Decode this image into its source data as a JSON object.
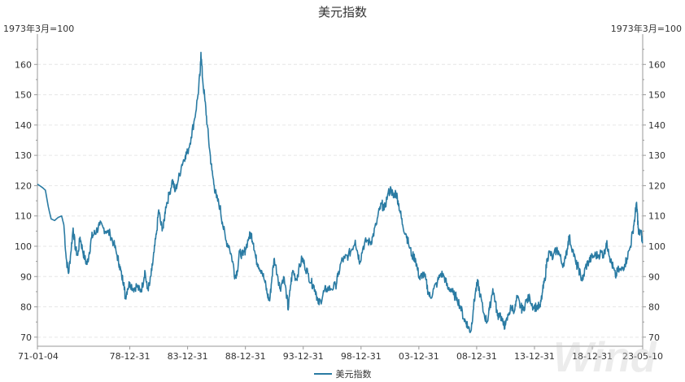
{
  "chart_data": {
    "type": "line",
    "title": "美元指数",
    "y_unit_left": "1973年3月=100",
    "y_unit_right": "1973年3月=100",
    "x_tick_labels": [
      "71-01-04",
      "78-12-31",
      "83-12-31",
      "88-12-31",
      "93-12-31",
      "98-12-31",
      "03-12-31",
      "08-12-31",
      "13-12-31",
      "18-12-31",
      "23-05-10"
    ],
    "x_tick_years": [
      1971.01,
      1979.0,
      1984.0,
      1989.0,
      1994.0,
      1999.0,
      2004.0,
      2009.0,
      2014.0,
      2019.0,
      2023.36
    ],
    "xlim": [
      1971.01,
      2023.36
    ],
    "ylim": [
      67,
      170
    ],
    "y_ticks": [
      70,
      80,
      90,
      100,
      110,
      120,
      130,
      140,
      150,
      160
    ],
    "grid": true,
    "legend": "bottom-center",
    "series": [
      {
        "name": "美元指数",
        "color": "#2a7ba3",
        "points": [
          [
            1971.01,
            120.5
          ],
          [
            1971.4,
            119.5
          ],
          [
            1971.7,
            118.5
          ],
          [
            1971.95,
            113
          ],
          [
            1972.2,
            109
          ],
          [
            1972.5,
            108.5
          ],
          [
            1972.8,
            109.5
          ],
          [
            1973.1,
            110
          ],
          [
            1973.3,
            107
          ],
          [
            1973.5,
            96
          ],
          [
            1973.7,
            91
          ],
          [
            1973.9,
            98
          ],
          [
            1974.1,
            106
          ],
          [
            1974.3,
            99
          ],
          [
            1974.5,
            97
          ],
          [
            1974.7,
            103
          ],
          [
            1974.9,
            99
          ],
          [
            1975.1,
            96
          ],
          [
            1975.3,
            94
          ],
          [
            1975.5,
            98
          ],
          [
            1975.7,
            103
          ],
          [
            1975.9,
            104
          ],
          [
            1976.1,
            105
          ],
          [
            1976.4,
            107
          ],
          [
            1976.7,
            106
          ],
          [
            1977.0,
            105
          ],
          [
            1977.3,
            104
          ],
          [
            1977.6,
            101
          ],
          [
            1977.9,
            97
          ],
          [
            1978.1,
            94
          ],
          [
            1978.3,
            90
          ],
          [
            1978.5,
            88
          ],
          [
            1978.6,
            83
          ],
          [
            1978.8,
            86
          ],
          [
            1979.0,
            88
          ],
          [
            1979.3,
            86
          ],
          [
            1979.6,
            87
          ],
          [
            1979.9,
            85
          ],
          [
            1980.1,
            87
          ],
          [
            1980.3,
            92
          ],
          [
            1980.5,
            86
          ],
          [
            1980.7,
            87
          ],
          [
            1980.9,
            92
          ],
          [
            1981.1,
            98
          ],
          [
            1981.3,
            104
          ],
          [
            1981.5,
            112
          ],
          [
            1981.7,
            107
          ],
          [
            1981.9,
            106
          ],
          [
            1982.1,
            113
          ],
          [
            1982.4,
            117
          ],
          [
            1982.7,
            122
          ],
          [
            1982.9,
            118
          ],
          [
            1983.2,
            122
          ],
          [
            1983.5,
            127
          ],
          [
            1983.8,
            130
          ],
          [
            1984.0,
            131
          ],
          [
            1984.3,
            136
          ],
          [
            1984.6,
            142
          ],
          [
            1984.9,
            150
          ],
          [
            1985.1,
            158
          ],
          [
            1985.15,
            164
          ],
          [
            1985.3,
            155
          ],
          [
            1985.5,
            148
          ],
          [
            1985.7,
            140
          ],
          [
            1985.9,
            132
          ],
          [
            1986.1,
            125
          ],
          [
            1986.3,
            120
          ],
          [
            1986.5,
            116
          ],
          [
            1986.8,
            113
          ],
          [
            1987.0,
            108
          ],
          [
            1987.3,
            102
          ],
          [
            1987.6,
            100
          ],
          [
            1987.9,
            95
          ],
          [
            1988.1,
            90
          ],
          [
            1988.3,
            92
          ],
          [
            1988.5,
            98
          ],
          [
            1988.8,
            97
          ],
          [
            1989.0,
            99
          ],
          [
            1989.3,
            103
          ],
          [
            1989.5,
            104
          ],
          [
            1989.7,
            101
          ],
          [
            1989.9,
            96
          ],
          [
            1990.1,
            94
          ],
          [
            1990.4,
            92
          ],
          [
            1990.7,
            88
          ],
          [
            1990.9,
            84
          ],
          [
            1991.1,
            82
          ],
          [
            1991.3,
            90
          ],
          [
            1991.5,
            96
          ],
          [
            1991.8,
            90
          ],
          [
            1992.0,
            86
          ],
          [
            1992.3,
            90
          ],
          [
            1992.6,
            83
          ],
          [
            1992.7,
            79
          ],
          [
            1992.9,
            87
          ],
          [
            1993.1,
            92
          ],
          [
            1993.4,
            89
          ],
          [
            1993.6,
            92
          ],
          [
            1993.9,
            96
          ],
          [
            1994.1,
            94
          ],
          [
            1994.4,
            91
          ],
          [
            1994.7,
            88
          ],
          [
            1994.9,
            87
          ],
          [
            1995.1,
            85
          ],
          [
            1995.3,
            81
          ],
          [
            1995.5,
            82
          ],
          [
            1995.8,
            85
          ],
          [
            1996.0,
            86
          ],
          [
            1996.4,
            86
          ],
          [
            1996.8,
            87
          ],
          [
            1997.0,
            90
          ],
          [
            1997.3,
            95
          ],
          [
            1997.6,
            96
          ],
          [
            1997.9,
            97
          ],
          [
            1998.2,
            99
          ],
          [
            1998.5,
            102
          ],
          [
            1998.7,
            98
          ],
          [
            1998.9,
            95
          ],
          [
            1999.2,
            100
          ],
          [
            1999.5,
            102
          ],
          [
            1999.8,
            101
          ],
          [
            2000.0,
            103
          ],
          [
            2000.3,
            107
          ],
          [
            2000.6,
            112
          ],
          [
            2000.8,
            114
          ],
          [
            2001.0,
            112
          ],
          [
            2001.3,
            117
          ],
          [
            2001.6,
            119
          ],
          [
            2001.8,
            116
          ],
          [
            2002.0,
            118
          ],
          [
            2002.2,
            115
          ],
          [
            2002.4,
            111
          ],
          [
            2002.6,
            107
          ],
          [
            2002.9,
            104
          ],
          [
            2003.1,
            101
          ],
          [
            2003.4,
            97
          ],
          [
            2003.7,
            96
          ],
          [
            2003.9,
            92
          ],
          [
            2004.1,
            89
          ],
          [
            2004.3,
            91
          ],
          [
            2004.6,
            89
          ],
          [
            2004.8,
            85
          ],
          [
            2005.0,
            83
          ],
          [
            2005.3,
            86
          ],
          [
            2005.6,
            88
          ],
          [
            2005.9,
            91
          ],
          [
            2006.2,
            90
          ],
          [
            2006.5,
            86
          ],
          [
            2006.8,
            86
          ],
          [
            2007.0,
            84
          ],
          [
            2007.3,
            83
          ],
          [
            2007.6,
            80
          ],
          [
            2007.9,
            76
          ],
          [
            2008.1,
            75
          ],
          [
            2008.3,
            73
          ],
          [
            2008.5,
            72
          ],
          [
            2008.7,
            79
          ],
          [
            2008.9,
            85
          ],
          [
            2009.1,
            88
          ],
          [
            2009.3,
            84
          ],
          [
            2009.6,
            78
          ],
          [
            2009.9,
            75
          ],
          [
            2010.1,
            79
          ],
          [
            2010.4,
            86
          ],
          [
            2010.6,
            82
          ],
          [
            2010.8,
            77
          ],
          [
            2011.0,
            78
          ],
          [
            2011.3,
            74
          ],
          [
            2011.5,
            74
          ],
          [
            2011.8,
            78
          ],
          [
            2012.0,
            80
          ],
          [
            2012.3,
            79
          ],
          [
            2012.5,
            83
          ],
          [
            2012.8,
            80
          ],
          [
            2013.0,
            79
          ],
          [
            2013.3,
            82
          ],
          [
            2013.6,
            83
          ],
          [
            2013.9,
            80
          ],
          [
            2014.2,
            80
          ],
          [
            2014.5,
            80
          ],
          [
            2014.7,
            85
          ],
          [
            2014.9,
            89
          ],
          [
            2015.1,
            96
          ],
          [
            2015.3,
            98
          ],
          [
            2015.6,
            96
          ],
          [
            2015.9,
            99
          ],
          [
            2016.1,
            98
          ],
          [
            2016.4,
            94
          ],
          [
            2016.7,
            96
          ],
          [
            2016.9,
            101
          ],
          [
            2017.0,
            103
          ],
          [
            2017.3,
            99
          ],
          [
            2017.6,
            94
          ],
          [
            2017.8,
            93
          ],
          [
            2018.0,
            90
          ],
          [
            2018.2,
            89
          ],
          [
            2018.4,
            93
          ],
          [
            2018.7,
            95
          ],
          [
            2018.9,
            96
          ],
          [
            2019.2,
            97
          ],
          [
            2019.5,
            97
          ],
          [
            2019.8,
            98
          ],
          [
            2020.0,
            97
          ],
          [
            2020.2,
            101
          ],
          [
            2020.4,
            99
          ],
          [
            2020.6,
            95
          ],
          [
            2020.8,
            93
          ],
          [
            2021.0,
            90
          ],
          [
            2021.2,
            92
          ],
          [
            2021.5,
            92
          ],
          [
            2021.8,
            94
          ],
          [
            2022.0,
            96
          ],
          [
            2022.3,
            100
          ],
          [
            2022.5,
            105
          ],
          [
            2022.7,
            110
          ],
          [
            2022.8,
            114
          ],
          [
            2022.9,
            111
          ],
          [
            2023.0,
            104
          ],
          [
            2023.2,
            105
          ],
          [
            2023.36,
            101
          ]
        ]
      }
    ]
  },
  "watermark": "Wind"
}
